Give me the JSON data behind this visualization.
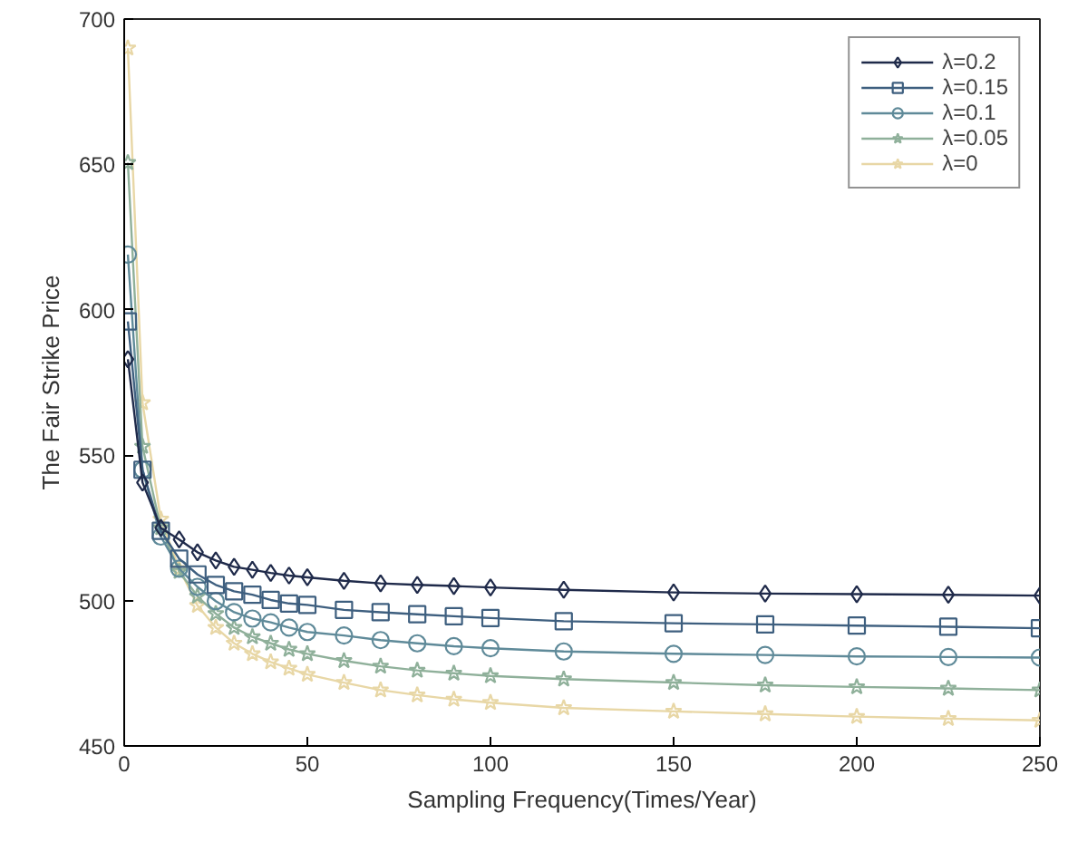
{
  "chart_data": {
    "type": "line",
    "xlabel": "Sampling Frequency(Times/Year)",
    "ylabel": "The Fair Strike Price",
    "x": [
      1,
      5,
      10,
      15,
      20,
      25,
      30,
      35,
      40,
      45,
      50,
      60,
      70,
      80,
      90,
      100,
      120,
      150,
      175,
      200,
      225,
      250
    ],
    "xlim": [
      0,
      250
    ],
    "xticks": [
      0,
      50,
      100,
      150,
      200,
      250
    ],
    "ylim": [
      450,
      700
    ],
    "yticks": [
      450,
      500,
      550,
      600,
      650,
      700
    ],
    "grid": false,
    "legend": "top right",
    "line_style": "solid",
    "series": [
      {
        "name": "λ=0.2",
        "color": "#1f2a4a",
        "marker": "diamond",
        "values": [
          583,
          540.6,
          525,
          521,
          516.6,
          513.8,
          511.6,
          510.6,
          509.5,
          508.6,
          508,
          506.8,
          505.9,
          505.4,
          505,
          504.5,
          503.7,
          502.8,
          502.4,
          502.2,
          502,
          501.7
        ]
      },
      {
        "name": "λ=0.15",
        "color": "#3e5f7f",
        "marker": "square",
        "values": [
          596,
          545,
          524,
          514.4,
          509,
          505.4,
          503.2,
          502,
          500.2,
          499,
          498.5,
          496.8,
          496,
          495.3,
          494.6,
          494,
          492.9,
          492.2,
          491.8,
          491.4,
          491,
          490.5
        ]
      },
      {
        "name": "λ=0.1",
        "color": "#5f8a99",
        "marker": "circle",
        "values": [
          619,
          545,
          522,
          511,
          504.7,
          499.8,
          496,
          493.8,
          492.5,
          490.7,
          489.2,
          488,
          486.4,
          485.3,
          484.3,
          483.6,
          482.5,
          481.7,
          481.3,
          480.8,
          480.6,
          480.4
        ]
      },
      {
        "name": "λ=0.05",
        "color": "#8fb09a",
        "marker": "star",
        "values": [
          650.6,
          553,
          525,
          510,
          501.5,
          495.5,
          490.7,
          487.5,
          485.3,
          483.2,
          481.7,
          479.3,
          477.4,
          476,
          475,
          474.1,
          473,
          471.8,
          470.9,
          470.3,
          469.8,
          469.2
        ]
      },
      {
        "name": "λ=0",
        "color": "#e8d7a6",
        "marker": "star",
        "values": [
          690,
          568,
          528,
          511,
          498.3,
          490.7,
          485.3,
          481.7,
          478.9,
          476.7,
          474.6,
          471.8,
          469.2,
          467.5,
          466,
          464.9,
          463.1,
          461.9,
          461,
          460.1,
          459.4,
          458.8
        ]
      }
    ]
  }
}
